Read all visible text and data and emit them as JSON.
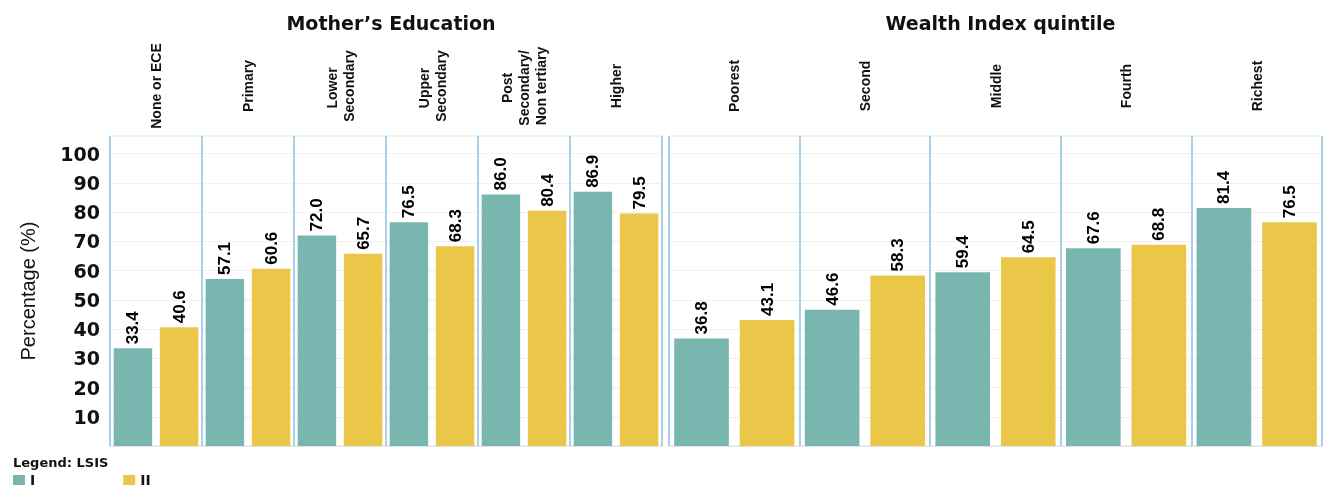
{
  "chart_data": [
    {
      "type": "bar",
      "title": "Mother’s Education",
      "ylabel": "Percentage (%)",
      "legend_title": "Legend: LSIS",
      "legend": "bottom left",
      "grid": true,
      "categories": [
        "None or ECE",
        "Primary",
        "Lower Secondary",
        "Upper Secondary",
        "Post Secondary/ Non tertiary",
        "Higher"
      ],
      "series": [
        {
          "name": "I",
          "color": "#79b6b0",
          "values": [
            33.4,
            57.1,
            72.0,
            76.5,
            86.0,
            86.9
          ],
          "value_labels": [
            "33.4",
            "57.1",
            "72.0",
            "76.5",
            "86.0",
            "86.9"
          ]
        },
        {
          "name": "II",
          "color": "#eac748",
          "values": [
            40.6,
            60.6,
            65.7,
            68.3,
            80.4,
            79.5
          ],
          "value_labels": [
            "40.6",
            "60.6",
            "65.7",
            "68.3",
            "80.4",
            "79.5"
          ]
        }
      ],
      "ylim": [
        0,
        106
      ],
      "yticks": [
        10,
        20,
        30,
        40,
        50,
        60,
        70,
        80,
        90,
        100
      ]
    },
    {
      "type": "bar",
      "title": "Wealth Index quintile",
      "grid": true,
      "tick_labels": "x",
      "categories": [
        "Poorest",
        "Second",
        "Middle",
        "Fourth",
        "Richest"
      ],
      "series": [
        {
          "color": "#79b6b0",
          "values": [
            36.8,
            46.6,
            59.4,
            67.6,
            81.4
          ],
          "value_labels": [
            "36.8",
            "46.6",
            "59.4",
            "67.6",
            "81.4"
          ]
        },
        {
          "color": "#eac748",
          "values": [
            43.1,
            58.3,
            64.5,
            68.8,
            76.5
          ],
          "value_labels": [
            "43.1",
            "58.3",
            "64.5",
            "68.8",
            "76.5"
          ]
        }
      ],
      "ylim": [
        0,
        106
      ],
      "yticks": [
        10,
        20,
        30,
        40,
        50,
        60,
        70,
        80,
        90,
        100
      ]
    }
  ]
}
